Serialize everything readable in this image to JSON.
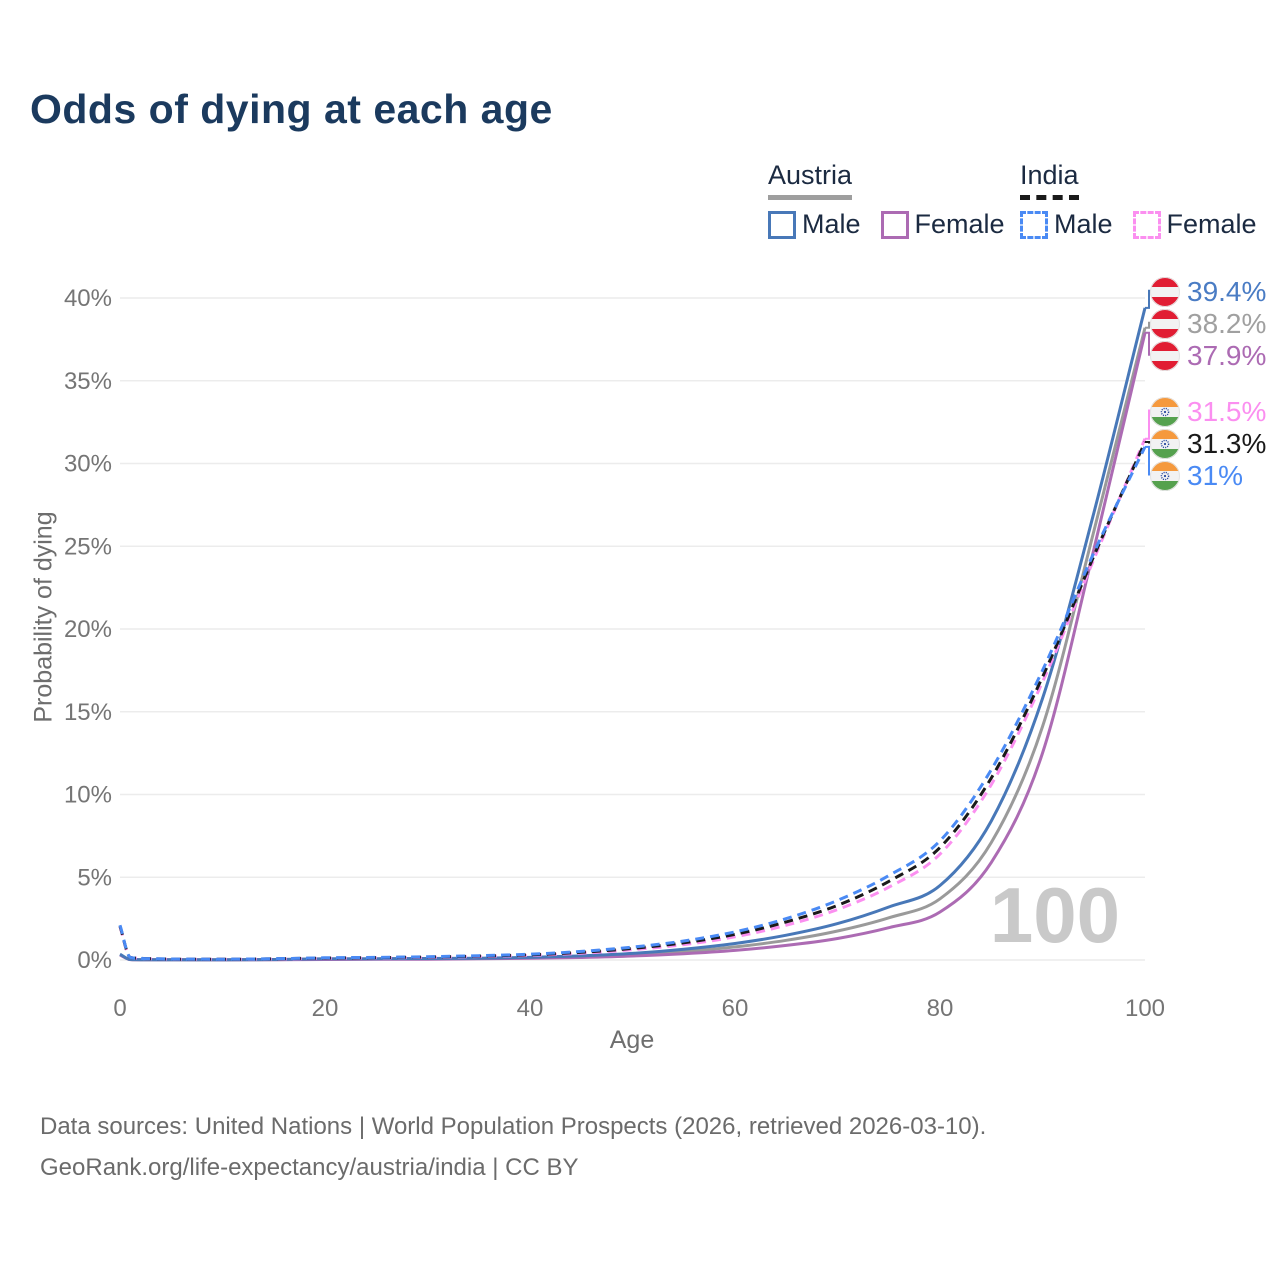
{
  "title": "Odds of dying at each age",
  "legend": {
    "groups": [
      {
        "label": "Austria",
        "underline_color": "#9e9e9e",
        "underline_style": "solid",
        "items": [
          {
            "label": "Male",
            "color": "#4878b8",
            "style": "solid"
          },
          {
            "label": "Female",
            "color": "#ac6bb3",
            "style": "solid"
          }
        ]
      },
      {
        "label": "India",
        "underline_color": "#1a1a1a",
        "underline_style": "dashed",
        "items": [
          {
            "label": "Male",
            "color": "#4a8af4",
            "style": "dashed"
          },
          {
            "label": "Female",
            "color": "#fb8ff0",
            "style": "dashed"
          }
        ]
      }
    ]
  },
  "chart_data": {
    "type": "line",
    "title": "Odds of dying at each age",
    "xlabel": "Age",
    "ylabel": "Probability of dying",
    "xlim": [
      0,
      100
    ],
    "ylim": [
      0,
      40
    ],
    "x_ticks": [
      0,
      20,
      40,
      60,
      80,
      100
    ],
    "y_ticks": [
      0,
      5,
      10,
      15,
      20,
      25,
      30,
      35,
      40
    ],
    "y_tick_suffix": "%",
    "grid": "horizontal",
    "legend_position": "top-right",
    "x": [
      0,
      1,
      2,
      3,
      5,
      10,
      15,
      20,
      25,
      30,
      35,
      40,
      45,
      50,
      55,
      60,
      65,
      70,
      75,
      80,
      85,
      90,
      95,
      100
    ],
    "series": [
      {
        "id": "austria-both",
        "country": "Austria",
        "flag": "austria-flag-icon",
        "color": "#9a9a9a",
        "label_color": "#a0a0a0",
        "dash": "solid",
        "end_label": "38.2%",
        "values": [
          0.32,
          0.028,
          0.018,
          0.013,
          0.011,
          0.009,
          0.025,
          0.05,
          0.06,
          0.07,
          0.09,
          0.13,
          0.2,
          0.32,
          0.51,
          0.79,
          1.19,
          1.75,
          2.55,
          3.7,
          7.1,
          14.1,
          25.9,
          38.2
        ]
      },
      {
        "id": "austria-female",
        "country": "Austria",
        "flag": "austria-flag-icon",
        "color": "#ac6bb3",
        "label_color": "#ac6bb3",
        "dash": "solid",
        "end_label": "37.9%",
        "values": [
          0.3,
          0.025,
          0.015,
          0.012,
          0.01,
          0.008,
          0.02,
          0.03,
          0.04,
          0.05,
          0.07,
          0.1,
          0.15,
          0.24,
          0.38,
          0.58,
          0.88,
          1.3,
          1.95,
          2.9,
          5.9,
          12.5,
          24.8,
          37.9
        ]
      },
      {
        "id": "austria-male",
        "country": "Austria",
        "flag": "austria-flag-icon",
        "color": "#4878b8",
        "label_color": "#4a7cc4",
        "dash": "solid",
        "end_label": "39.4%",
        "values": [
          0.35,
          0.03,
          0.02,
          0.015,
          0.012,
          0.01,
          0.03,
          0.07,
          0.08,
          0.09,
          0.11,
          0.16,
          0.25,
          0.4,
          0.65,
          1.0,
          1.5,
          2.2,
          3.2,
          4.5,
          8.4,
          15.8,
          27.0,
          39.4
        ]
      },
      {
        "id": "india-female",
        "country": "India",
        "flag": "india-flag-icon",
        "color": "#fb8ff0",
        "label_color": "#fb8ff0",
        "dash": "dashed",
        "end_label": "31.5%",
        "values": [
          2.0,
          0.16,
          0.1,
          0.07,
          0.05,
          0.04,
          0.06,
          0.1,
          0.13,
          0.16,
          0.21,
          0.28,
          0.41,
          0.62,
          0.93,
          1.4,
          2.1,
          3.05,
          4.4,
          6.4,
          10.6,
          16.8,
          24.2,
          31.5
        ]
      },
      {
        "id": "india-both",
        "country": "India",
        "flag": "india-flag-icon",
        "color": "#1a1a1a",
        "label_color": "#1a1a1a",
        "dash": "dashed",
        "end_label": "31.3%",
        "values": [
          2.05,
          0.16,
          0.1,
          0.075,
          0.055,
          0.045,
          0.07,
          0.115,
          0.145,
          0.18,
          0.235,
          0.315,
          0.465,
          0.7,
          1.04,
          1.55,
          2.3,
          3.3,
          4.75,
          6.8,
          11.0,
          17.1,
          24.4,
          31.3
        ]
      },
      {
        "id": "india-male",
        "country": "India",
        "flag": "india-flag-icon",
        "color": "#4a8af4",
        "label_color": "#4a8af4",
        "dash": "dashed",
        "end_label": "31%",
        "values": [
          2.1,
          0.16,
          0.1,
          0.08,
          0.06,
          0.05,
          0.08,
          0.13,
          0.16,
          0.2,
          0.26,
          0.35,
          0.52,
          0.78,
          1.15,
          1.7,
          2.5,
          3.6,
          5.1,
          7.2,
          11.5,
          17.5,
          24.6,
          31.0
        ]
      }
    ]
  },
  "watermark": "100",
  "footer": {
    "line1": "Data sources: United Nations | World Population Prospects (2026, retrieved 2026-03-10).",
    "line2": "GeoRank.org/life-expectancy/austria/india | CC BY"
  },
  "colors": {
    "title": "#1b3a5e",
    "grid": "#ececec",
    "tick": "#757575",
    "axis_label": "#6e6e6e",
    "watermark": "#c9c9c9",
    "footer": "#6b6b6b",
    "austria_flag_red": "#e11d33",
    "india_flag_saffron": "#f5993d",
    "india_flag_green": "#55a14e",
    "india_flag_navy": "#2a4aa0"
  }
}
